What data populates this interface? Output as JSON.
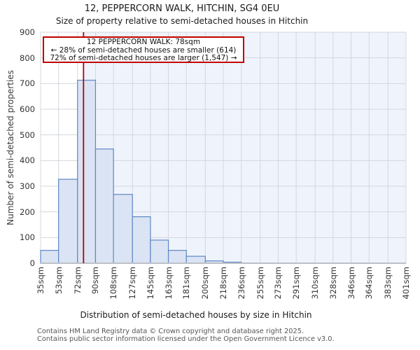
{
  "header": {
    "title": "12, PEPPERCORN WALK, HITCHIN, SG4 0EU",
    "subtitle": "Size of property relative to semi-detached houses in Hitchin"
  },
  "annotation": {
    "line1": "12 PEPPERCORN WALK: 78sqm",
    "line2": "← 28% of semi-detached houses are smaller (614)",
    "line3": "72% of semi-detached houses are larger (1,547) →"
  },
  "chart_data": {
    "type": "bar",
    "title": "12, PEPPERCORN WALK, HITCHIN, SG4 0EU",
    "subtitle": "Size of property relative to semi-detached houses in Hitchin",
    "xlabel": "Distribution of semi-detached houses by size in Hitchin",
    "ylabel": "Number of semi-detached properties",
    "bin_edges_sqm": [
      35,
      53,
      72,
      90,
      108,
      127,
      145,
      163,
      181,
      200,
      218,
      236,
      255,
      273,
      291,
      310,
      328,
      346,
      364,
      383,
      401
    ],
    "counts": [
      50,
      327,
      713,
      445,
      268,
      181,
      90,
      50,
      27,
      9,
      4,
      0,
      0,
      0,
      0,
      0,
      0,
      0,
      0,
      0
    ],
    "x_tick_labels": [
      "35sqm",
      "53sqm",
      "72sqm",
      "90sqm",
      "108sqm",
      "127sqm",
      "145sqm",
      "163sqm",
      "181sqm",
      "200sqm",
      "218sqm",
      "236sqm",
      "255sqm",
      "273sqm",
      "291sqm",
      "310sqm",
      "328sqm",
      "346sqm",
      "364sqm",
      "383sqm",
      "401sqm"
    ],
    "y_ticks": [
      0,
      100,
      200,
      300,
      400,
      500,
      600,
      700,
      800,
      900
    ],
    "ylim": [
      0,
      900
    ],
    "grid": "on",
    "marker_value_sqm": 78,
    "marker_smaller_count": 614,
    "marker_larger_count": 1547,
    "colors": {
      "bar_fill": "#dbe4f4",
      "bar_edge": "#5e87c5",
      "marker_line": "#b40000",
      "annotation_border": "#c00000",
      "tint_region": "#eff3fb",
      "grid_line": "#d3d7de",
      "baseline": "#bcc0c6"
    }
  },
  "footer": {
    "line1": "Contains HM Land Registry data © Crown copyright and database right 2025.",
    "line2": "Contains public sector information licensed under the Open Government Licence v3.0."
  }
}
